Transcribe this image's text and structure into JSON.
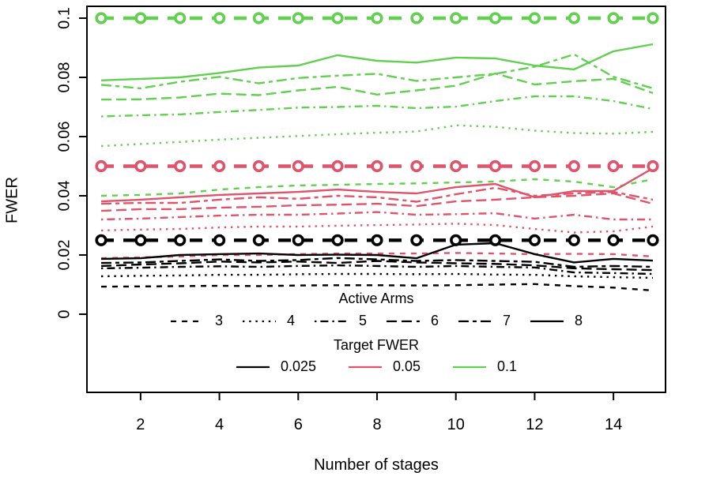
{
  "chart_data": {
    "type": "line",
    "title": "",
    "xlabel": "Number of stages",
    "ylabel": "FWER",
    "x": [
      1,
      2,
      3,
      4,
      5,
      6,
      7,
      8,
      9,
      10,
      11,
      12,
      13,
      14,
      15
    ],
    "xlim": [
      1,
      15
    ],
    "ylim": [
      0,
      0.1
    ],
    "xticks": [
      2,
      4,
      6,
      8,
      10,
      12,
      14
    ],
    "ytick_values": [
      0,
      0.02,
      0.04,
      0.06,
      0.08,
      0.1
    ],
    "ytick_labels": [
      "0",
      "0.02",
      "0.04",
      "0.06",
      "0.08",
      "0.1"
    ],
    "grid": false,
    "legend_position": "bottom-inside",
    "palette": {
      "black": "#000000",
      "red": "#DF536B",
      "green": "#61D04F"
    },
    "reference_lines": [
      {
        "target": "0.1",
        "value": 0.1,
        "color": "#61D04F",
        "style": "heavy-dashed-with-open-circles"
      },
      {
        "target": "0.05",
        "value": 0.05,
        "color": "#DF536B",
        "style": "heavy-dashed-with-open-circles"
      },
      {
        "target": "0.025",
        "value": 0.025,
        "color": "#000000",
        "style": "heavy-dashed-with-open-circles"
      }
    ],
    "series": [
      {
        "name": "target0.1-arms8",
        "target_fwer": "0.1",
        "active_arms": 8,
        "color": "#61D04F",
        "linetype": "solid",
        "values": [
          0.079,
          0.0795,
          0.08,
          0.0815,
          0.0833,
          0.084,
          0.0875,
          0.0856,
          0.085,
          0.0867,
          0.0864,
          0.084,
          0.0827,
          0.0888,
          0.0912
        ]
      },
      {
        "name": "target0.1-arms7",
        "target_fwer": "0.1",
        "active_arms": 7,
        "color": "#61D04F",
        "linetype": "twodash",
        "values": [
          0.0775,
          0.0763,
          0.0785,
          0.0802,
          0.078,
          0.0798,
          0.0806,
          0.0812,
          0.0788,
          0.08,
          0.0812,
          0.0836,
          0.0878,
          0.0802,
          0.0763
        ]
      },
      {
        "name": "target0.1-arms6",
        "target_fwer": "0.1",
        "active_arms": 6,
        "color": "#61D04F",
        "linetype": "longdash",
        "values": [
          0.0725,
          0.0726,
          0.0732,
          0.0745,
          0.074,
          0.0756,
          0.0768,
          0.0742,
          0.0756,
          0.0772,
          0.0813,
          0.0776,
          0.0787,
          0.0795,
          0.0747
        ]
      },
      {
        "name": "target0.1-arms5",
        "target_fwer": "0.1",
        "active_arms": 5,
        "color": "#61D04F",
        "linetype": "dotdash",
        "values": [
          0.0668,
          0.0672,
          0.0675,
          0.0683,
          0.069,
          0.0698,
          0.07,
          0.0704,
          0.0696,
          0.0701,
          0.072,
          0.0736,
          0.0736,
          0.072,
          0.0693
        ]
      },
      {
        "name": "target0.1-arms4",
        "target_fwer": "0.1",
        "active_arms": 4,
        "color": "#61D04F",
        "linetype": "dotted",
        "values": [
          0.0568,
          0.0575,
          0.0582,
          0.059,
          0.0596,
          0.0602,
          0.0608,
          0.0613,
          0.0617,
          0.0638,
          0.0633,
          0.062,
          0.0612,
          0.061,
          0.0616
        ]
      },
      {
        "name": "target0.1-arms3",
        "target_fwer": "0.1",
        "active_arms": 3,
        "color": "#61D04F",
        "linetype": "dashed",
        "values": [
          0.04,
          0.0403,
          0.0408,
          0.0421,
          0.0429,
          0.0435,
          0.0437,
          0.044,
          0.0442,
          0.0445,
          0.0448,
          0.0456,
          0.0448,
          0.0429,
          0.0456
        ]
      },
      {
        "name": "target0.05-arms8",
        "target_fwer": "0.05",
        "active_arms": 8,
        "color": "#DF536B",
        "linetype": "solid",
        "values": [
          0.0381,
          0.0387,
          0.0395,
          0.0403,
          0.0408,
          0.0413,
          0.0421,
          0.0413,
          0.0408,
          0.0429,
          0.044,
          0.0395,
          0.0416,
          0.0416,
          0.0493
        ]
      },
      {
        "name": "target0.05-arms7",
        "target_fwer": "0.05",
        "active_arms": 7,
        "color": "#DF536B",
        "linetype": "twodash",
        "values": [
          0.0373,
          0.0376,
          0.0376,
          0.0387,
          0.0395,
          0.039,
          0.04,
          0.0395,
          0.038,
          0.0405,
          0.0427,
          0.04,
          0.0408,
          0.0413,
          0.0387
        ]
      },
      {
        "name": "target0.05-arms6",
        "target_fwer": "0.05",
        "active_arms": 6,
        "color": "#DF536B",
        "linetype": "longdash",
        "values": [
          0.0349,
          0.0355,
          0.0355,
          0.036,
          0.0363,
          0.0368,
          0.037,
          0.0373,
          0.0365,
          0.0381,
          0.0387,
          0.0395,
          0.04,
          0.0408,
          0.0373
        ]
      },
      {
        "name": "target0.05-arms5",
        "target_fwer": "0.05",
        "active_arms": 5,
        "color": "#DF536B",
        "linetype": "dotdash",
        "values": [
          0.032,
          0.0323,
          0.0328,
          0.0333,
          0.0336,
          0.0336,
          0.034,
          0.0345,
          0.0336,
          0.0338,
          0.0341,
          0.0323,
          0.0336,
          0.032,
          0.032
        ]
      },
      {
        "name": "target0.05-arms4",
        "target_fwer": "0.05",
        "active_arms": 4,
        "color": "#DF536B",
        "linetype": "dotted",
        "values": [
          0.0283,
          0.0286,
          0.0288,
          0.0293,
          0.0296,
          0.0296,
          0.0299,
          0.0301,
          0.0303,
          0.0306,
          0.0301,
          0.0288,
          0.0276,
          0.028,
          0.0296
        ]
      },
      {
        "name": "target0.05-arms3",
        "target_fwer": "0.05",
        "active_arms": 3,
        "color": "#DF536B",
        "linetype": "dashed",
        "values": [
          0.0189,
          0.0192,
          0.0195,
          0.02,
          0.02,
          0.0203,
          0.0205,
          0.0205,
          0.0205,
          0.0207,
          0.0205,
          0.0203,
          0.0204,
          0.0203,
          0.0195
        ]
      },
      {
        "name": "target0.025-arms8",
        "target_fwer": "0.025",
        "active_arms": 8,
        "color": "#000000",
        "linetype": "solid",
        "values": [
          0.0187,
          0.0189,
          0.02,
          0.0203,
          0.0205,
          0.02,
          0.0201,
          0.02,
          0.0189,
          0.0235,
          0.024,
          0.0203,
          0.0175,
          0.0187,
          0.0181
        ]
      },
      {
        "name": "target0.025-arms7",
        "target_fwer": "0.025",
        "active_arms": 7,
        "color": "#000000",
        "linetype": "twodash",
        "values": [
          0.0173,
          0.0175,
          0.018,
          0.0185,
          0.018,
          0.0183,
          0.019,
          0.0185,
          0.018,
          0.0183,
          0.018,
          0.0177,
          0.016,
          0.0163,
          0.016
        ]
      },
      {
        "name": "target0.025-arms6",
        "target_fwer": "0.025",
        "active_arms": 6,
        "color": "#000000",
        "linetype": "longdash",
        "values": [
          0.0163,
          0.0168,
          0.0172,
          0.0178,
          0.0175,
          0.0178,
          0.0173,
          0.018,
          0.0175,
          0.0172,
          0.017,
          0.0165,
          0.0155,
          0.0152,
          0.0149
        ]
      },
      {
        "name": "target0.025-arms5",
        "target_fwer": "0.025",
        "active_arms": 5,
        "color": "#000000",
        "linetype": "dotdash",
        "values": [
          0.0155,
          0.0157,
          0.016,
          0.0162,
          0.016,
          0.0163,
          0.0165,
          0.0163,
          0.016,
          0.0163,
          0.016,
          0.0158,
          0.0141,
          0.0139,
          0.0136
        ]
      },
      {
        "name": "target0.025-arms4",
        "target_fwer": "0.025",
        "active_arms": 4,
        "color": "#000000",
        "linetype": "dotted",
        "values": [
          0.0128,
          0.013,
          0.0131,
          0.0133,
          0.0133,
          0.0135,
          0.0136,
          0.0136,
          0.0135,
          0.0136,
          0.0134,
          0.0133,
          0.0128,
          0.0125,
          0.0123
        ]
      },
      {
        "name": "target0.025-arms3",
        "target_fwer": "0.025",
        "active_arms": 3,
        "color": "#000000",
        "linetype": "dashed",
        "values": [
          0.0093,
          0.0094,
          0.0095,
          0.0096,
          0.0095,
          0.0097,
          0.0098,
          0.0098,
          0.0097,
          0.0098,
          0.01,
          0.0102,
          0.0095,
          0.009,
          0.008
        ]
      }
    ]
  },
  "legend": {
    "arms_title": "Active Arms",
    "arms_items": [
      {
        "label": "3",
        "linetype": "dashed"
      },
      {
        "label": "4",
        "linetype": "dotted"
      },
      {
        "label": "5",
        "linetype": "dotdash"
      },
      {
        "label": "6",
        "linetype": "longdash"
      },
      {
        "label": "7",
        "linetype": "twodash"
      },
      {
        "label": "8",
        "linetype": "solid"
      }
    ],
    "target_title": "Target FWER",
    "target_items": [
      {
        "label": "0.025",
        "color": "#000000"
      },
      {
        "label": "0.05",
        "color": "#DF536B"
      },
      {
        "label": "0.1",
        "color": "#61D04F"
      }
    ]
  }
}
